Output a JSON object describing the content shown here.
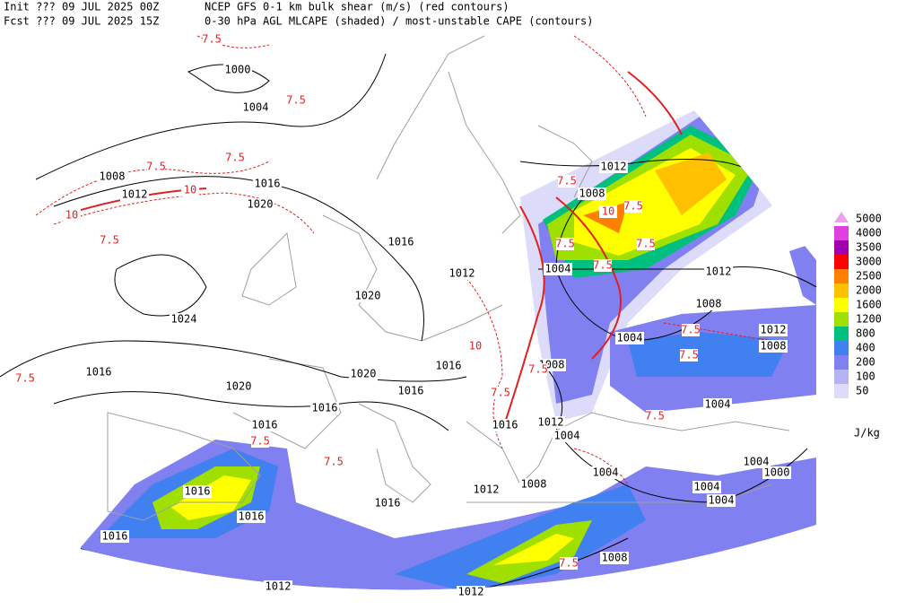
{
  "header": {
    "init": "Init  ??? 09 JUL 2025 00Z",
    "product": "NCEP GFS 0-1 km bulk shear (m/s) (red contours)",
    "fcst": "Fcst ??? 09 JUL 2025 15Z",
    "fields": "0-30 hPa AGL MLCAPE (shaded) / most-unstable CAPE (contours)"
  },
  "isobar_labels": [
    "1000",
    "1004",
    "1008",
    "1012",
    "1016",
    "1020",
    "1024",
    "1016",
    "1012",
    "1020",
    "1016",
    "1020",
    "1016",
    "1016",
    "1020",
    "1016",
    "1016",
    "1016",
    "1016",
    "1016",
    "1016",
    "1012",
    "1008",
    "1012",
    "1012",
    "1008",
    "1008",
    "1012",
    "1016",
    "1004",
    "1004",
    "1004",
    "1004",
    "1000",
    "1004",
    "1004",
    "1004",
    "1008",
    "1012",
    "1008",
    "1012",
    "1012",
    "1008",
    "1004"
  ],
  "shear_labels": [
    "7.5",
    "7.5",
    "7.5",
    "7.5",
    "10",
    "7.5",
    "10",
    "7.5",
    "7.5",
    "7.5",
    "7.5",
    "10",
    "7.5",
    "7.5",
    "7.5",
    "7.5",
    "7.5",
    "7.5",
    "10",
    "7.5",
    "7.5",
    "7.5",
    "7.5"
  ],
  "legend": {
    "items": [
      {
        "label": "5000",
        "color": "#e8a0f0"
      },
      {
        "label": "4000",
        "color": "#e040e0"
      },
      {
        "label": "3500",
        "color": "#a000b0"
      },
      {
        "label": "3000",
        "color": "#ff0000"
      },
      {
        "label": "2500",
        "color": "#ff8000"
      },
      {
        "label": "2000",
        "color": "#ffc000"
      },
      {
        "label": "1600",
        "color": "#ffff00"
      },
      {
        "label": "1200",
        "color": "#a0e000"
      },
      {
        "label": "800",
        "color": "#00c080"
      },
      {
        "label": "400",
        "color": "#4080f0"
      },
      {
        "label": "200",
        "color": "#8080f0"
      },
      {
        "label": "100",
        "color": "#b4b4f4"
      },
      {
        "label": "50",
        "color": "#dcdcfa"
      }
    ],
    "units": "J/kg"
  }
}
